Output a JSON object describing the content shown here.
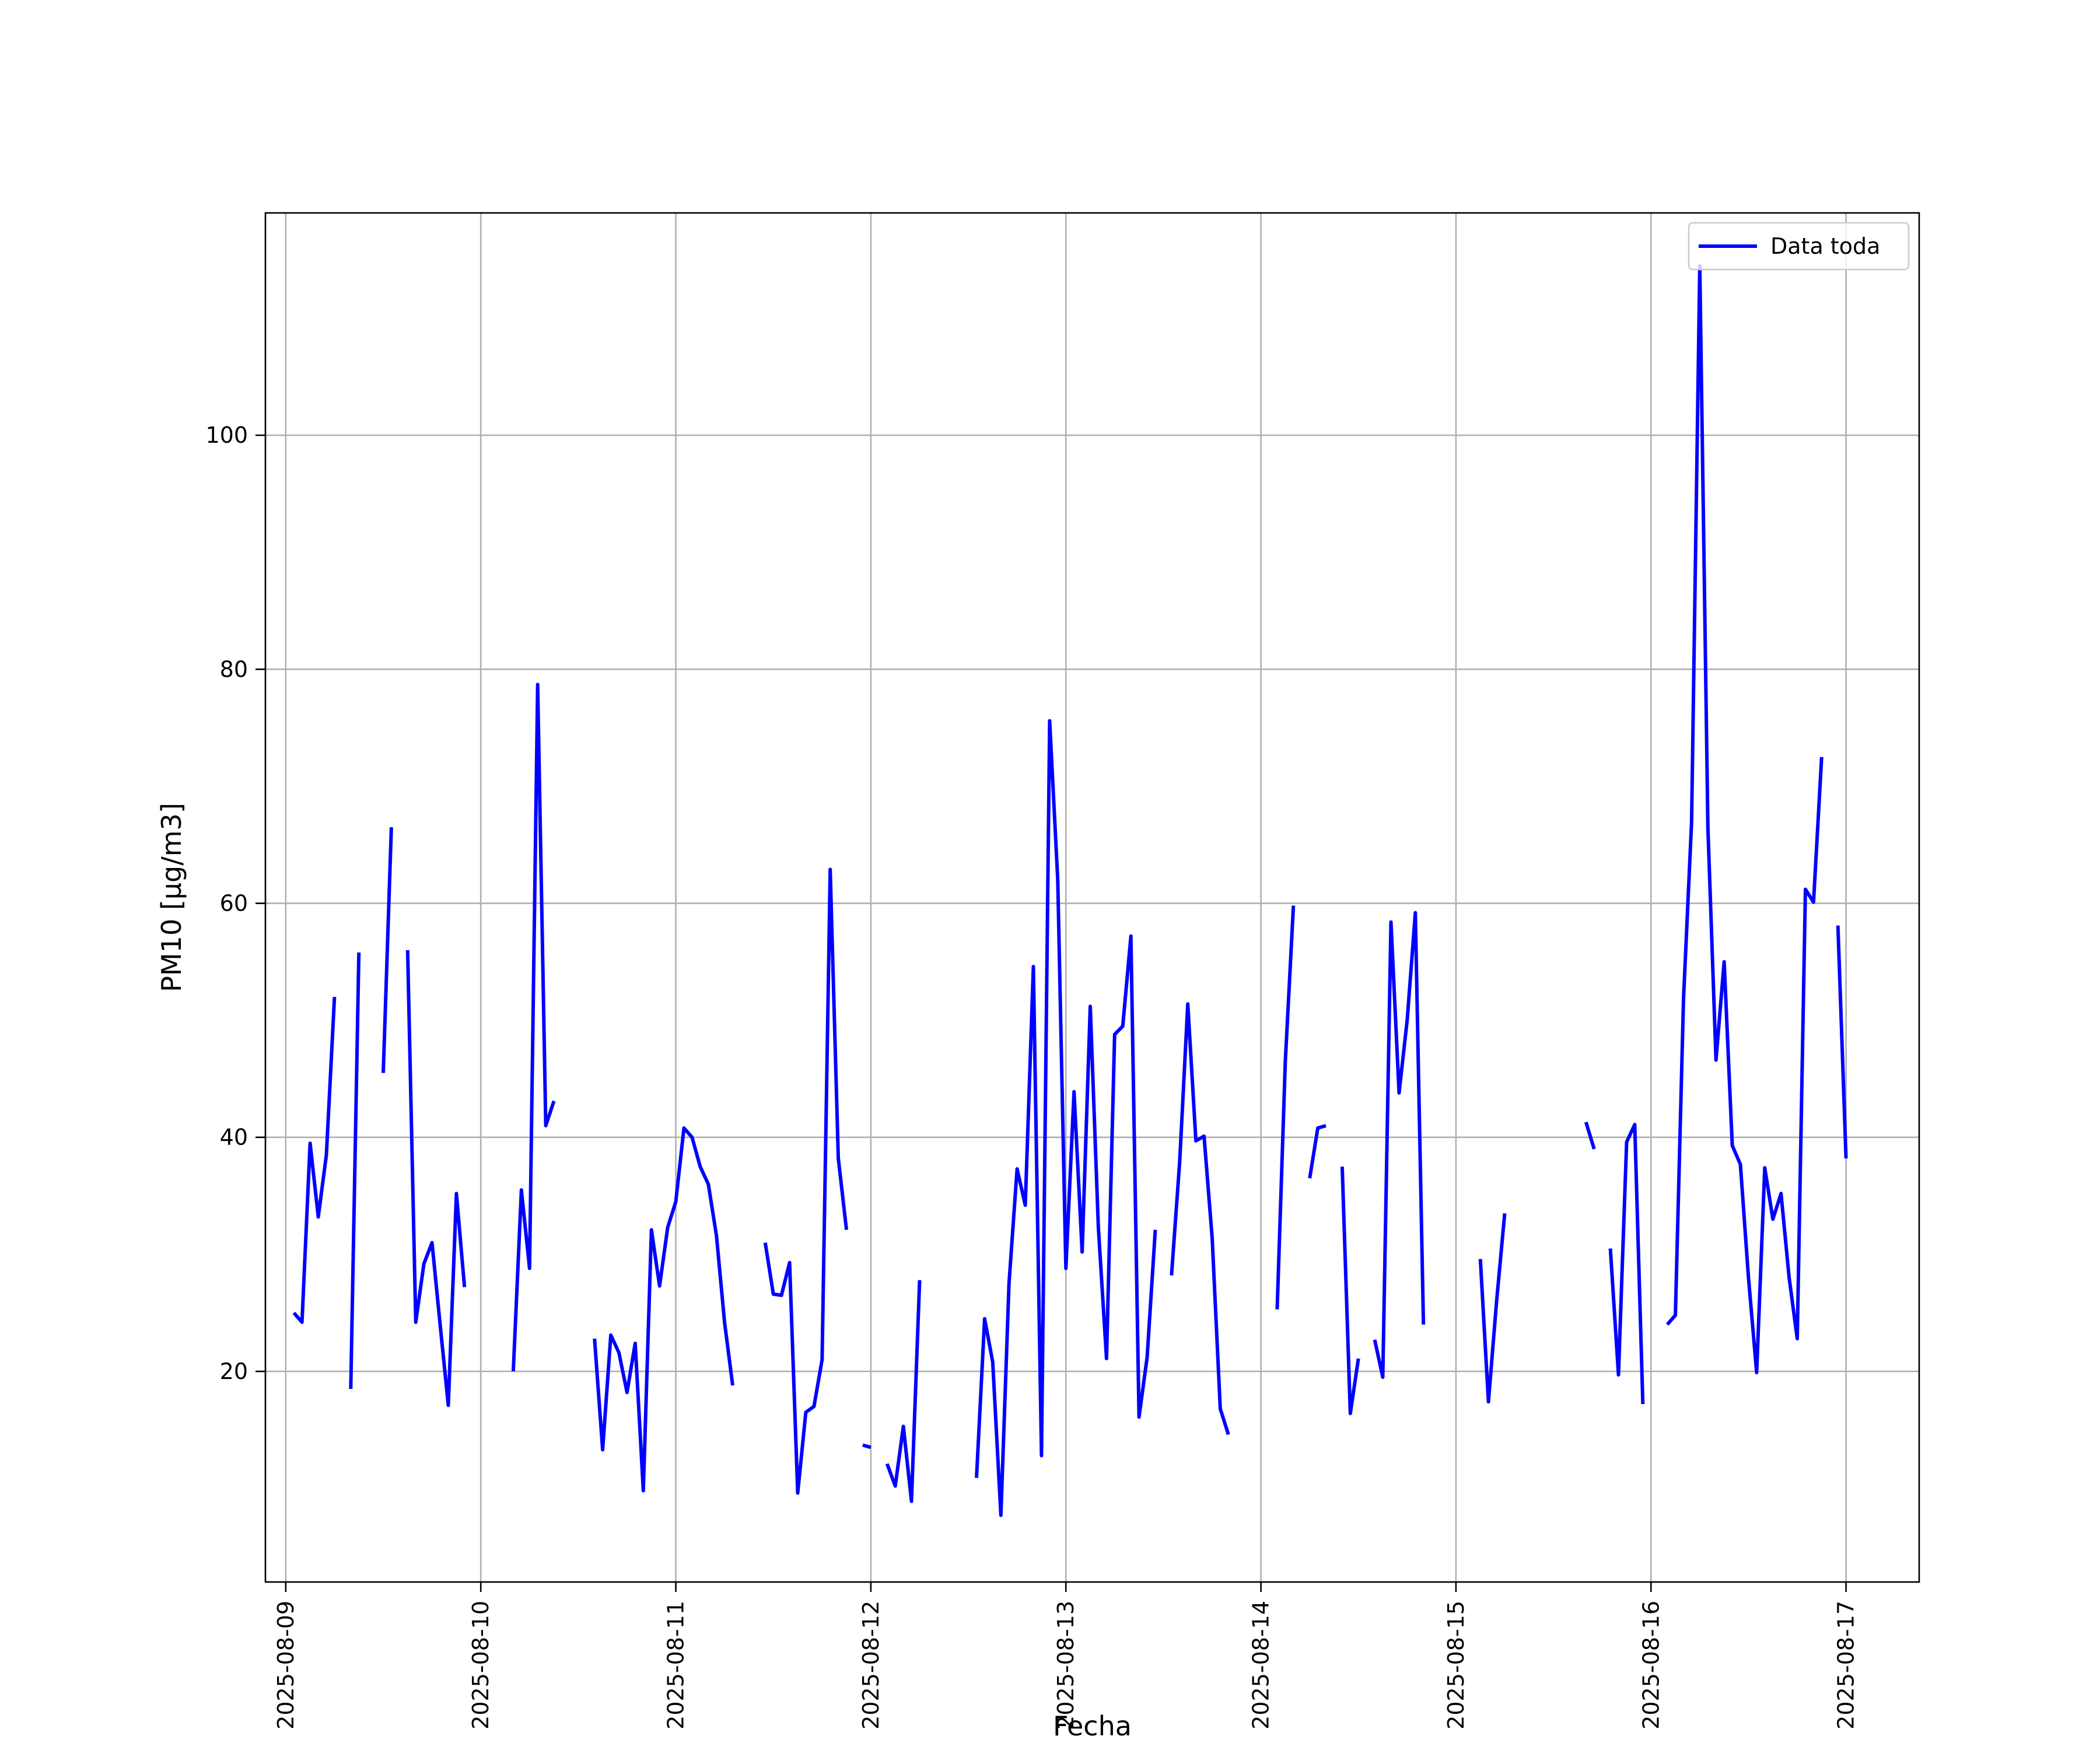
{
  "chart_data": {
    "type": "line",
    "title": "",
    "xlabel": "Fecha",
    "ylabel": "PM10 [μg/m3]",
    "xlim": [
      "2025-08-08 21:30",
      "2025-08-17 09:00"
    ],
    "ylim": [
      2,
      119
    ],
    "grid": true,
    "legend_position": "top-right",
    "x_ticks": [
      "2025-08-09",
      "2025-08-10",
      "2025-08-11",
      "2025-08-12",
      "2025-08-13",
      "2025-08-14",
      "2025-08-15",
      "2025-08-16",
      "2025-08-17"
    ],
    "y_ticks": [
      20,
      40,
      60,
      80,
      100
    ],
    "series": [
      {
        "name": "Data toda",
        "color": "#0000ff",
        "segments": [
          [
            [
              "2025-08-09 01:00",
              25.0
            ],
            [
              "2025-08-09 02:00",
              24.2
            ],
            [
              "2025-08-09 03:00",
              39.5
            ],
            [
              "2025-08-09 04:00",
              33.2
            ],
            [
              "2025-08-09 05:00",
              38.5
            ],
            [
              "2025-08-09 06:00",
              52.0
            ]
          ],
          [
            [
              "2025-08-09 08:00",
              18.5
            ],
            [
              "2025-08-09 09:00",
              55.8
            ]
          ],
          [
            [
              "2025-08-09 12:00",
              45.5
            ],
            [
              "2025-08-09 13:00",
              66.5
            ]
          ],
          [
            [
              "2025-08-09 15:00",
              56.0
            ],
            [
              "2025-08-09 16:00",
              24.2
            ],
            [
              "2025-08-09 17:00",
              29.2
            ],
            [
              "2025-08-09 18:00",
              31.0
            ],
            [
              "2025-08-09 19:00",
              24.0
            ],
            [
              "2025-08-09 20:00",
              17.1
            ],
            [
              "2025-08-09 21:00",
              35.2
            ],
            [
              "2025-08-09 22:00",
              27.2
            ]
          ],
          [
            [
              "2025-08-10 04:00",
              20.0
            ],
            [
              "2025-08-10 05:00",
              35.5
            ],
            [
              "2025-08-10 06:00",
              28.8
            ],
            [
              "2025-08-10 07:00",
              78.7
            ],
            [
              "2025-08-10 08:00",
              41.0
            ],
            [
              "2025-08-10 09:00",
              43.1
            ]
          ],
          [
            [
              "2025-08-10 14:00",
              22.8
            ],
            [
              "2025-08-10 15:00",
              13.3
            ],
            [
              "2025-08-10 16:00",
              23.1
            ],
            [
              "2025-08-10 17:00",
              21.6
            ],
            [
              "2025-08-10 18:00",
              18.2
            ],
            [
              "2025-08-10 19:00",
              22.4
            ],
            [
              "2025-08-10 20:00",
              9.8
            ],
            [
              "2025-08-10 21:00",
              32.1
            ],
            [
              "2025-08-10 22:00",
              27.3
            ],
            [
              "2025-08-10 23:00",
              32.3
            ],
            [
              "2025-08-11 00:00",
              34.5
            ],
            [
              "2025-08-11 01:00",
              40.8
            ],
            [
              "2025-08-11 02:00",
              40.0
            ],
            [
              "2025-08-11 03:00",
              37.5
            ],
            [
              "2025-08-11 04:00",
              36.0
            ],
            [
              "2025-08-11 05:00",
              31.6
            ],
            [
              "2025-08-11 06:00",
              24.2
            ],
            [
              "2025-08-11 07:00",
              18.8
            ]
          ],
          [
            [
              "2025-08-11 11:00",
              31.0
            ],
            [
              "2025-08-11 12:00",
              26.6
            ],
            [
              "2025-08-11 13:00",
              26.5
            ],
            [
              "2025-08-11 14:00",
              29.3
            ],
            [
              "2025-08-11 15:00",
              9.6
            ],
            [
              "2025-08-11 16:00",
              16.5
            ],
            [
              "2025-08-11 17:00",
              17.0
            ],
            [
              "2025-08-11 18:00",
              21.0
            ],
            [
              "2025-08-11 19:00",
              62.9
            ],
            [
              "2025-08-11 20:00",
              38.2
            ],
            [
              "2025-08-11 21:00",
              32.1
            ]
          ],
          [
            [
              "2025-08-11 23:00",
              13.7
            ],
            [
              "2025-08-12 00:00",
              13.5
            ]
          ],
          [
            [
              "2025-08-12 02:00",
              12.1
            ],
            [
              "2025-08-12 03:00",
              10.2
            ],
            [
              "2025-08-12 04:00",
              15.3
            ],
            [
              "2025-08-12 05:00",
              8.9
            ],
            [
              "2025-08-12 06:00",
              27.8
            ]
          ],
          [
            [
              "2025-08-12 13:00",
              10.9
            ],
            [
              "2025-08-12 14:00",
              24.5
            ],
            [
              "2025-08-12 15:00",
              20.8
            ],
            [
              "2025-08-12 16:00",
              7.7
            ],
            [
              "2025-08-12 17:00",
              27.5
            ],
            [
              "2025-08-12 18:00",
              37.3
            ],
            [
              "2025-08-12 19:00",
              34.2
            ],
            [
              "2025-08-12 20:00",
              54.6
            ],
            [
              "2025-08-12 21:00",
              12.8
            ],
            [
              "2025-08-12 22:00",
              75.6
            ],
            [
              "2025-08-12 23:00",
              62.0
            ],
            [
              "2025-08-13 00:00",
              28.8
            ],
            [
              "2025-08-13 01:00",
              43.9
            ],
            [
              "2025-08-13 02:00",
              30.2
            ],
            [
              "2025-08-13 03:00",
              51.2
            ],
            [
              "2025-08-13 04:00",
              32.3
            ],
            [
              "2025-08-13 05:00",
              21.1
            ],
            [
              "2025-08-13 06:00",
              48.8
            ],
            [
              "2025-08-13 07:00",
              49.5
            ],
            [
              "2025-08-13 08:00",
              57.2
            ],
            [
              "2025-08-13 09:00",
              16.1
            ],
            [
              "2025-08-13 10:00",
              21.2
            ],
            [
              "2025-08-13 11:00",
              32.1
            ]
          ],
          [
            [
              "2025-08-13 13:00",
              28.2
            ],
            [
              "2025-08-13 14:00",
              37.9
            ],
            [
              "2025-08-13 15:00",
              51.4
            ],
            [
              "2025-08-13 16:00",
              39.7
            ],
            [
              "2025-08-13 17:00",
              40.1
            ],
            [
              "2025-08-13 18:00",
              31.4
            ],
            [
              "2025-08-13 19:00",
              16.8
            ],
            [
              "2025-08-13 20:00",
              14.6
            ]
          ],
          [
            [
              "2025-08-14 02:00",
              25.3
            ],
            [
              "2025-08-14 03:00",
              46.5
            ],
            [
              "2025-08-14 04:00",
              59.8
            ]
          ],
          [
            [
              "2025-08-14 06:00",
              36.5
            ],
            [
              "2025-08-14 07:00",
              40.8
            ],
            [
              "2025-08-14 08:00",
              41.0
            ]
          ],
          [
            [
              "2025-08-14 10:00",
              37.5
            ],
            [
              "2025-08-14 11:00",
              16.4
            ],
            [
              "2025-08-14 12:00",
              21.1
            ]
          ],
          [
            [
              "2025-08-14 14:00",
              22.7
            ],
            [
              "2025-08-14 15:00",
              19.5
            ],
            [
              "2025-08-14 16:00",
              58.4
            ],
            [
              "2025-08-14 17:00",
              43.8
            ],
            [
              "2025-08-14 18:00",
              50.0
            ],
            [
              "2025-08-14 19:00",
              59.2
            ],
            [
              "2025-08-14 20:00",
              24.0
            ]
          ],
          [
            [
              "2025-08-15 03:00",
              29.6
            ],
            [
              "2025-08-15 04:00",
              17.4
            ],
            [
              "2025-08-15 05:00",
              26.0
            ],
            [
              "2025-08-15 06:00",
              33.5
            ]
          ],
          [
            [
              "2025-08-15 16:00",
              41.3
            ],
            [
              "2025-08-15 17:00",
              39.0
            ]
          ],
          [
            [
              "2025-08-15 19:00",
              30.5
            ],
            [
              "2025-08-15 20:00",
              19.7
            ],
            [
              "2025-08-15 21:00",
              39.6
            ],
            [
              "2025-08-15 22:00",
              41.1
            ],
            [
              "2025-08-15 23:00",
              17.2
            ]
          ],
          [
            [
              "2025-08-16 02:00",
              24.0
            ],
            [
              "2025-08-16 03:00",
              24.8
            ],
            [
              "2025-08-16 04:00",
              51.8
            ],
            [
              "2025-08-16 05:00",
              67.0
            ],
            [
              "2025-08-16 06:00",
              114.5
            ],
            [
              "2025-08-16 07:00",
              66.5
            ],
            [
              "2025-08-16 08:00",
              46.6
            ],
            [
              "2025-08-16 09:00",
              55.0
            ],
            [
              "2025-08-16 10:00",
              39.3
            ],
            [
              "2025-08-16 11:00",
              37.7
            ],
            [
              "2025-08-16 12:00",
              28.0
            ],
            [
              "2025-08-16 13:00",
              19.9
            ],
            [
              "2025-08-16 14:00",
              37.4
            ],
            [
              "2025-08-16 15:00",
              33.0
            ],
            [
              "2025-08-16 16:00",
              35.2
            ],
            [
              "2025-08-16 17:00",
              28.0
            ],
            [
              "2025-08-16 18:00",
              22.8
            ],
            [
              "2025-08-16 19:00",
              61.2
            ],
            [
              "2025-08-16 20:00",
              60.1
            ],
            [
              "2025-08-16 21:00",
              72.5
            ]
          ],
          [
            [
              "2025-08-16 23:00",
              58.1
            ],
            [
              "2025-08-17 00:00",
              38.2
            ]
          ]
        ]
      }
    ]
  }
}
